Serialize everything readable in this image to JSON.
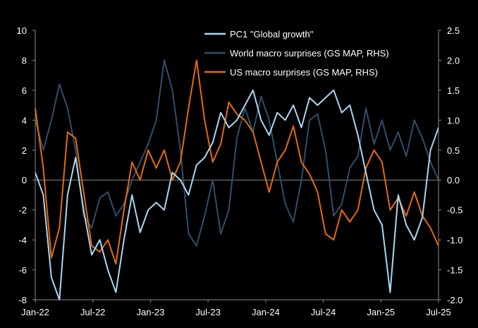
{
  "chart_data": {
    "type": "line",
    "title": "",
    "xlabel": "",
    "ylabel": "",
    "x_ticks": [
      "Jan-22",
      "Jul-22",
      "Jan-23",
      "Jul-23",
      "Jan-24",
      "Jul-24",
      "Jan-25",
      "Jul-25"
    ],
    "x_range": [
      "2022-01",
      "2025-07"
    ],
    "ylim_left": [
      -8,
      10
    ],
    "ylim_right": [
      -2.0,
      2.5
    ],
    "y_ticks_left": [
      "10",
      "8",
      "6",
      "4",
      "2",
      "0",
      "-2",
      "-4",
      "-6",
      "-8"
    ],
    "y_ticks_right": [
      "2.5",
      "2.0",
      "1.5",
      "1.0",
      "0.5",
      "0.0",
      "-0.5",
      "-1.0",
      "-1.5",
      "-2.0"
    ],
    "legend_position": "top-center",
    "series": [
      {
        "name": "PC1 \"Global growth\"",
        "axis": "left",
        "color": "#a9d8f5",
        "points": [
          [
            0.0,
            0.5
          ],
          [
            0.02,
            -1.0
          ],
          [
            0.04,
            -6.5
          ],
          [
            0.06,
            -8.0
          ],
          [
            0.08,
            -1.0
          ],
          [
            0.1,
            1.5
          ],
          [
            0.12,
            -2.0
          ],
          [
            0.14,
            -5.0
          ],
          [
            0.16,
            -4.0
          ],
          [
            0.18,
            -6.0
          ],
          [
            0.2,
            -7.5
          ],
          [
            0.22,
            -4.0
          ],
          [
            0.24,
            -1.0
          ],
          [
            0.26,
            -3.5
          ],
          [
            0.28,
            -2.0
          ],
          [
            0.3,
            -1.5
          ],
          [
            0.32,
            -2.0
          ],
          [
            0.34,
            0.5
          ],
          [
            0.36,
            0.0
          ],
          [
            0.38,
            -1.0
          ],
          [
            0.4,
            1.0
          ],
          [
            0.42,
            1.5
          ],
          [
            0.44,
            2.5
          ],
          [
            0.46,
            4.5
          ],
          [
            0.48,
            3.5
          ],
          [
            0.5,
            4.0
          ],
          [
            0.52,
            5.0
          ],
          [
            0.54,
            6.0
          ],
          [
            0.56,
            4.0
          ],
          [
            0.58,
            3.0
          ],
          [
            0.6,
            4.5
          ],
          [
            0.62,
            4.0
          ],
          [
            0.64,
            5.0
          ],
          [
            0.66,
            3.5
          ],
          [
            0.68,
            5.5
          ],
          [
            0.7,
            5.0
          ],
          [
            0.72,
            5.5
          ],
          [
            0.74,
            6.0
          ],
          [
            0.76,
            4.5
          ],
          [
            0.78,
            5.0
          ],
          [
            0.8,
            3.0
          ],
          [
            0.82,
            0.5
          ],
          [
            0.84,
            -2.0
          ],
          [
            0.86,
            -3.0
          ],
          [
            0.88,
            -7.5
          ],
          [
            0.9,
            -1.0
          ],
          [
            0.92,
            -3.0
          ],
          [
            0.94,
            -4.0
          ],
          [
            0.96,
            -2.5
          ],
          [
            0.98,
            2.0
          ],
          [
            1.0,
            3.5
          ]
        ]
      },
      {
        "name": "World macro surprises (GS MAP, RHS)",
        "axis": "right",
        "color": "#2f4f6b",
        "points": [
          [
            0.0,
            1.0
          ],
          [
            0.02,
            0.5
          ],
          [
            0.04,
            1.0
          ],
          [
            0.06,
            1.6
          ],
          [
            0.08,
            1.2
          ],
          [
            0.1,
            0.5
          ],
          [
            0.12,
            -0.6
          ],
          [
            0.14,
            -0.8
          ],
          [
            0.16,
            -0.3
          ],
          [
            0.18,
            -0.2
          ],
          [
            0.2,
            -0.6
          ],
          [
            0.22,
            -0.4
          ],
          [
            0.24,
            0.0
          ],
          [
            0.26,
            0.3
          ],
          [
            0.28,
            0.6
          ],
          [
            0.3,
            1.0
          ],
          [
            0.32,
            2.0
          ],
          [
            0.34,
            1.5
          ],
          [
            0.36,
            0.5
          ],
          [
            0.38,
            -0.9
          ],
          [
            0.4,
            -1.1
          ],
          [
            0.42,
            -0.6
          ],
          [
            0.44,
            0.0
          ],
          [
            0.46,
            -0.9
          ],
          [
            0.48,
            -0.5
          ],
          [
            0.5,
            0.7
          ],
          [
            0.52,
            1.2
          ],
          [
            0.54,
            0.8
          ],
          [
            0.56,
            1.4
          ],
          [
            0.58,
            1.0
          ],
          [
            0.6,
            0.3
          ],
          [
            0.62,
            -0.4
          ],
          [
            0.64,
            -0.7
          ],
          [
            0.66,
            0.0
          ],
          [
            0.68,
            1.0
          ],
          [
            0.7,
            1.1
          ],
          [
            0.72,
            0.5
          ],
          [
            0.74,
            -0.6
          ],
          [
            0.76,
            -0.4
          ],
          [
            0.78,
            0.2
          ],
          [
            0.8,
            0.4
          ],
          [
            0.82,
            1.2
          ],
          [
            0.84,
            0.6
          ],
          [
            0.86,
            1.0
          ],
          [
            0.88,
            0.5
          ],
          [
            0.9,
            0.8
          ],
          [
            0.92,
            0.4
          ],
          [
            0.94,
            1.0
          ],
          [
            0.96,
            0.7
          ],
          [
            0.98,
            0.3
          ],
          [
            1.0,
            0.0
          ]
        ]
      },
      {
        "name": "US macro surprises (GS MAP, RHS)",
        "axis": "right",
        "color": "#e46c0a",
        "points": [
          [
            0.0,
            1.2
          ],
          [
            0.02,
            0.2
          ],
          [
            0.04,
            -1.3
          ],
          [
            0.06,
            -0.8
          ],
          [
            0.08,
            0.8
          ],
          [
            0.1,
            0.7
          ],
          [
            0.12,
            -0.2
          ],
          [
            0.14,
            -1.1
          ],
          [
            0.16,
            -1.2
          ],
          [
            0.18,
            -1.0
          ],
          [
            0.2,
            -1.4
          ],
          [
            0.22,
            -0.5
          ],
          [
            0.24,
            0.3
          ],
          [
            0.26,
            0.0
          ],
          [
            0.28,
            0.5
          ],
          [
            0.3,
            0.2
          ],
          [
            0.32,
            0.5
          ],
          [
            0.34,
            0.0
          ],
          [
            0.36,
            0.3
          ],
          [
            0.38,
            1.2
          ],
          [
            0.4,
            2.0
          ],
          [
            0.42,
            1.0
          ],
          [
            0.44,
            0.3
          ],
          [
            0.46,
            0.6
          ],
          [
            0.48,
            1.3
          ],
          [
            0.5,
            1.1
          ],
          [
            0.52,
            1.0
          ],
          [
            0.54,
            0.8
          ],
          [
            0.56,
            0.3
          ],
          [
            0.58,
            -0.2
          ],
          [
            0.6,
            0.3
          ],
          [
            0.62,
            0.5
          ],
          [
            0.64,
            0.9
          ],
          [
            0.66,
            0.3
          ],
          [
            0.68,
            0.1
          ],
          [
            0.7,
            -0.2
          ],
          [
            0.72,
            -0.9
          ],
          [
            0.74,
            -1.0
          ],
          [
            0.76,
            -0.5
          ],
          [
            0.78,
            -0.7
          ],
          [
            0.8,
            -0.5
          ],
          [
            0.82,
            0.2
          ],
          [
            0.84,
            0.5
          ],
          [
            0.86,
            0.3
          ],
          [
            0.88,
            -0.5
          ],
          [
            0.9,
            -0.3
          ],
          [
            0.92,
            -0.6
          ],
          [
            0.94,
            -0.2
          ],
          [
            0.96,
            -0.6
          ],
          [
            0.98,
            -0.8
          ],
          [
            1.0,
            -1.1
          ]
        ]
      }
    ]
  }
}
